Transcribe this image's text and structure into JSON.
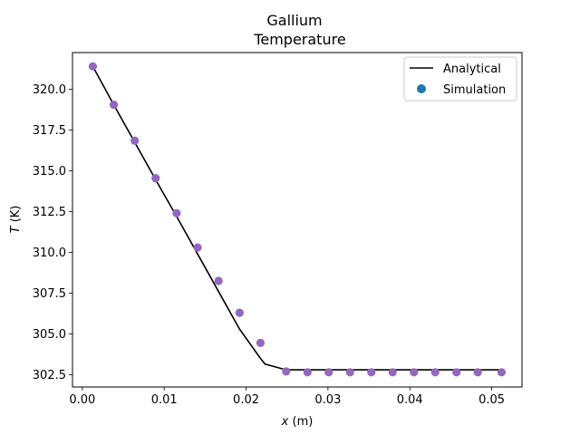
{
  "chart_data": {
    "type": "line",
    "title_line1": "Gallium",
    "title_line2": "Temperature",
    "xlabel_var": "x",
    "xlabel_unit": " (m)",
    "ylabel_var": "T",
    "ylabel_unit": " (K)",
    "xlim": [
      -0.0012,
      0.0537
    ],
    "ylim": [
      301.75,
      322.25
    ],
    "xticks": [
      0.0,
      0.01,
      0.02,
      0.03,
      0.04,
      0.05
    ],
    "xtick_labels": [
      "0.00",
      "0.01",
      "0.02",
      "0.03",
      "0.04",
      "0.05"
    ],
    "yticks": [
      302.5,
      305.0,
      307.5,
      310.0,
      312.5,
      315.0,
      317.5,
      320.0
    ],
    "ytick_labels": [
      "302.5",
      "305.0",
      "307.5",
      "310.0",
      "312.5",
      "315.0",
      "317.5",
      "320.0"
    ],
    "grid": false,
    "legend_position": "top-right",
    "series": [
      {
        "name": "Analytical",
        "kind": "line",
        "color": "#000000",
        "x": [
          0.00128,
          0.00384,
          0.0064,
          0.00896,
          0.01152,
          0.01408,
          0.01664,
          0.0192,
          0.02176,
          0.02232,
          0.0249,
          0.0275,
          0.0301,
          0.0327,
          0.0353,
          0.0379,
          0.0405,
          0.0431,
          0.0457,
          0.0483,
          0.0512
        ],
        "y": [
          321.4,
          319.05,
          316.75,
          314.45,
          312.2,
          309.9,
          307.6,
          305.3,
          303.5,
          303.15,
          302.8,
          302.8,
          302.8,
          302.8,
          302.8,
          302.8,
          302.8,
          302.8,
          302.8,
          302.8,
          302.8
        ]
      },
      {
        "name": "Simulation",
        "kind": "scatter",
        "color": "#1f77b4",
        "marker_color": "#9467bd",
        "x": [
          0.00128,
          0.00384,
          0.0064,
          0.00896,
          0.01152,
          0.01408,
          0.01664,
          0.0192,
          0.02176,
          0.0249,
          0.0275,
          0.0301,
          0.0327,
          0.0353,
          0.0379,
          0.0405,
          0.0431,
          0.0457,
          0.0483,
          0.0512
        ],
        "y": [
          321.4,
          319.05,
          316.85,
          314.55,
          312.4,
          310.3,
          308.25,
          306.3,
          304.45,
          302.7,
          302.65,
          302.65,
          302.65,
          302.65,
          302.65,
          302.65,
          302.65,
          302.65,
          302.65,
          302.65
        ]
      }
    ]
  }
}
